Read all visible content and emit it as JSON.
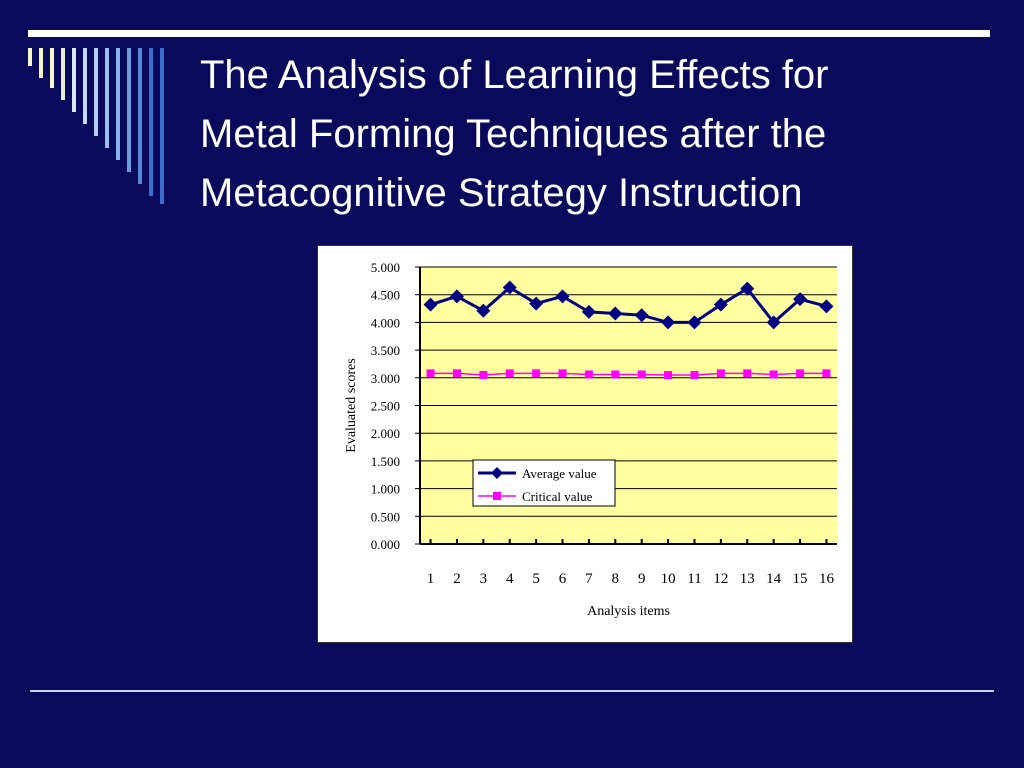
{
  "slide": {
    "title_lines": [
      "The Analysis of Learning Effects for",
      "Metal Forming Techniques after the",
      "Metacognitive Strategy Instruction"
    ]
  },
  "colors": {
    "background": "#0a0a5c",
    "plot_area": "#ffffa0",
    "average_series": "#000080",
    "critical_series": "#ff00ff"
  },
  "chart_data": {
    "type": "line",
    "x": [
      1,
      2,
      3,
      4,
      5,
      6,
      7,
      8,
      9,
      10,
      11,
      12,
      13,
      14,
      15,
      16
    ],
    "tick_labels": [
      "1",
      "2",
      "3",
      "4",
      "5",
      "6",
      "7",
      "8",
      "9",
      "10",
      "11",
      "12",
      "13",
      "14",
      "15",
      "16"
    ],
    "y_tick_labels": [
      "0.000",
      "0.500",
      "1.000",
      "1.500",
      "2.000",
      "2.500",
      "3.000",
      "3.500",
      "4.000",
      "4.500",
      "5.000"
    ],
    "xlabel": "Analysis items",
    "ylabel": "Evaluated scores",
    "ylim": [
      0,
      5
    ],
    "grid": true,
    "legend_position": "lower-left",
    "series": [
      {
        "name": "Average value",
        "marker": "diamond",
        "color": "#000080",
        "values": [
          4.32,
          4.47,
          4.21,
          4.63,
          4.34,
          4.47,
          4.19,
          4.16,
          4.13,
          4.0,
          4.0,
          4.32,
          4.61,
          4.0,
          4.42,
          4.29
        ]
      },
      {
        "name": "Critical value",
        "marker": "square",
        "color": "#ff00ff",
        "values": [
          3.08,
          3.08,
          3.05,
          3.08,
          3.08,
          3.08,
          3.06,
          3.06,
          3.06,
          3.05,
          3.05,
          3.08,
          3.08,
          3.06,
          3.08,
          3.08
        ]
      }
    ]
  }
}
